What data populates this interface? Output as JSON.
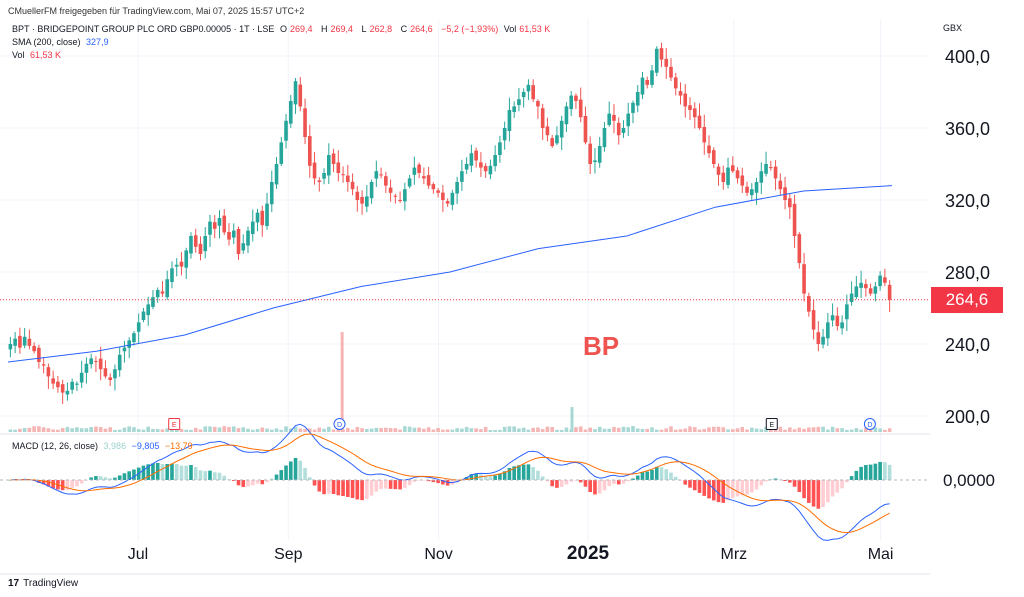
{
  "credit": "CMuellerFM freigegeben für TradingView.com, Mai 07, 2025 15:57 UTC+2",
  "header": {
    "symbol": "BPT · BRIDGEPOINT GROUP PLC ORD GBP0.00005 · 1T · LSE",
    "open_label": "O",
    "open": "269,4",
    "high_label": "H",
    "high": "269,4",
    "low_label": "L",
    "low": "262,8",
    "close_label": "C",
    "close": "264,6",
    "change": "−5,2 (−1,93%)",
    "vol_label": "Vol",
    "vol": "61,53 K"
  },
  "sma_legend": {
    "label": "SMA (200, close)",
    "value": "327,9"
  },
  "vol_legend": {
    "label": "Vol",
    "value": "61,53 K"
  },
  "macd_legend": {
    "label": "MACD (12, 26, close)",
    "hist": "3,986",
    "macd": "−9,805",
    "signal": "−13,79"
  },
  "currency": "GBX",
  "watermark": "BP",
  "price_tag": "264,6",
  "brand": {
    "logo": "17",
    "name": "TradingView"
  },
  "colors": {
    "up": "#26a69a",
    "down": "#ef5350",
    "sma": "#2962ff",
    "macd": "#2962ff",
    "signal": "#ff6d00",
    "pricetag": "#f23645"
  },
  "chart_data": {
    "type": "candlestick",
    "y_ticks": [
      "400,0",
      "360,0",
      "320,0",
      "280,0",
      "240,0",
      "200,0"
    ],
    "y_tick_values": [
      400,
      360,
      320,
      280,
      240,
      200
    ],
    "ylim": [
      190,
      412
    ],
    "x_ticks": [
      {
        "label": "Jul",
        "pos": 0.155,
        "bold": false
      },
      {
        "label": "Sep",
        "pos": 0.325,
        "bold": false
      },
      {
        "label": "Nov",
        "pos": 0.495,
        "bold": false
      },
      {
        "label": "2025",
        "pos": 0.664,
        "bold": true
      },
      {
        "label": "Mrz",
        "pos": 0.829,
        "bold": false
      },
      {
        "label": "Mai",
        "pos": 0.995,
        "bold": false
      }
    ],
    "macd_ticks": [
      "0,0000"
    ],
    "last_price": 264.6,
    "closes": [
      240,
      243,
      238,
      244,
      239,
      236,
      230,
      228,
      222,
      218,
      216,
      213,
      214,
      219,
      218,
      224,
      229,
      232,
      230,
      226,
      222,
      220,
      226,
      234,
      238,
      242,
      246,
      252,
      258,
      262,
      266,
      270,
      268,
      276,
      282,
      284,
      283,
      292,
      300,
      294,
      290,
      300,
      308,
      304,
      310,
      302,
      298,
      303,
      290,
      296,
      303,
      308,
      313,
      306,
      318,
      330,
      340,
      352,
      364,
      375,
      386,
      372,
      355,
      339,
      332,
      330,
      335,
      345,
      340,
      335,
      334,
      330,
      326,
      320,
      318,
      322,
      330,
      336,
      334,
      328,
      324,
      322,
      320,
      326,
      332,
      338,
      335,
      332,
      328,
      326,
      324,
      320,
      318,
      324,
      330,
      336,
      340,
      346,
      342,
      338,
      336,
      339,
      345,
      352,
      360,
      370,
      372,
      376,
      380,
      384,
      376,
      372,
      360,
      356,
      350,
      356,
      364,
      372,
      378,
      375,
      366,
      352,
      340,
      342,
      350,
      360,
      368,
      364,
      356,
      360,
      368,
      374,
      380,
      388,
      384,
      392,
      404,
      398,
      394,
      388,
      382,
      378,
      372,
      370,
      366,
      360,
      352,
      346,
      340,
      334,
      330,
      338,
      336,
      332,
      328,
      324,
      326,
      330,
      336,
      340,
      338,
      332,
      326,
      320,
      316,
      300,
      285,
      268,
      258,
      248,
      240,
      244,
      252,
      256,
      250,
      252,
      262,
      268,
      272,
      274,
      271,
      268,
      272,
      278,
      274,
      264.6
    ],
    "sma200": [
      [
        0,
        230
      ],
      [
        0.1,
        236
      ],
      [
        0.2,
        245
      ],
      [
        0.3,
        260
      ],
      [
        0.4,
        272
      ],
      [
        0.5,
        280
      ],
      [
        0.6,
        293
      ],
      [
        0.7,
        300
      ],
      [
        0.8,
        316
      ],
      [
        0.9,
        325
      ],
      [
        1.0,
        328
      ]
    ],
    "events": [
      {
        "type": "E",
        "pos": 0.188
      },
      {
        "type": "D",
        "pos": 0.375
      },
      {
        "type": "E",
        "pos": 0.864
      },
      {
        "type": "D",
        "pos": 0.975
      }
    ],
    "volume_spikes": [
      {
        "pos": 0.378,
        "rel": 1.0
      },
      {
        "pos": 0.638,
        "rel": 0.25
      }
    ]
  }
}
